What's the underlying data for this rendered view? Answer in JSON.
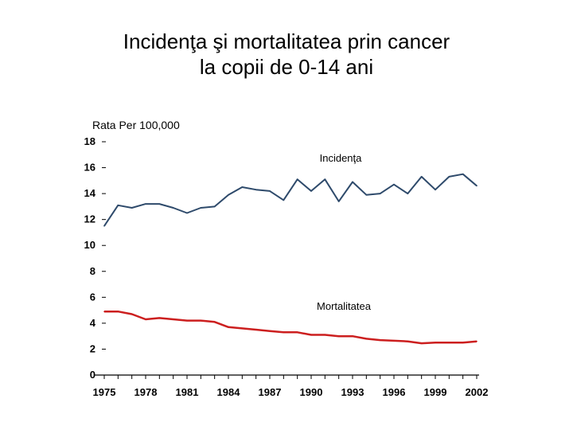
{
  "chart_data": {
    "type": "line",
    "title_line1": "Incidenţa şi mortalitatea prin cancer",
    "title_line2": "la copii de 0-14 ani",
    "ylabel": "Rata Per 100,000",
    "ylim": [
      0,
      18
    ],
    "yticks": [
      0,
      2,
      4,
      6,
      8,
      10,
      12,
      14,
      16,
      18
    ],
    "xlim": [
      1975,
      2002
    ],
    "xticks": [
      1975,
      1978,
      1981,
      1984,
      1987,
      1990,
      1993,
      1996,
      1999,
      2002
    ],
    "grid": false,
    "x": [
      1975,
      1976,
      1977,
      1978,
      1979,
      1980,
      1981,
      1982,
      1983,
      1984,
      1985,
      1986,
      1987,
      1988,
      1989,
      1990,
      1991,
      1992,
      1993,
      1994,
      1995,
      1996,
      1997,
      1998,
      1999,
      2000,
      2001,
      2002
    ],
    "series": [
      {
        "name": "Incidenţa",
        "color": "#2e4a6b",
        "values": [
          11.5,
          13.1,
          12.9,
          13.2,
          13.2,
          12.9,
          12.5,
          12.9,
          13.0,
          13.9,
          14.5,
          14.3,
          14.2,
          13.5,
          15.1,
          14.2,
          15.1,
          13.4,
          14.9,
          13.9,
          14.0,
          14.7,
          14.0,
          15.3,
          14.3,
          15.3,
          15.5,
          14.6
        ]
      },
      {
        "name": "Mortalitatea",
        "color": "#cc1f1f",
        "values": [
          4.9,
          4.9,
          4.7,
          4.3,
          4.4,
          4.3,
          4.2,
          4.2,
          4.1,
          3.7,
          3.6,
          3.5,
          3.4,
          3.3,
          3.3,
          3.1,
          3.1,
          3.0,
          3.0,
          2.8,
          2.7,
          2.65,
          2.6,
          2.45,
          2.5,
          2.5,
          2.5,
          2.6
        ]
      }
    ]
  }
}
